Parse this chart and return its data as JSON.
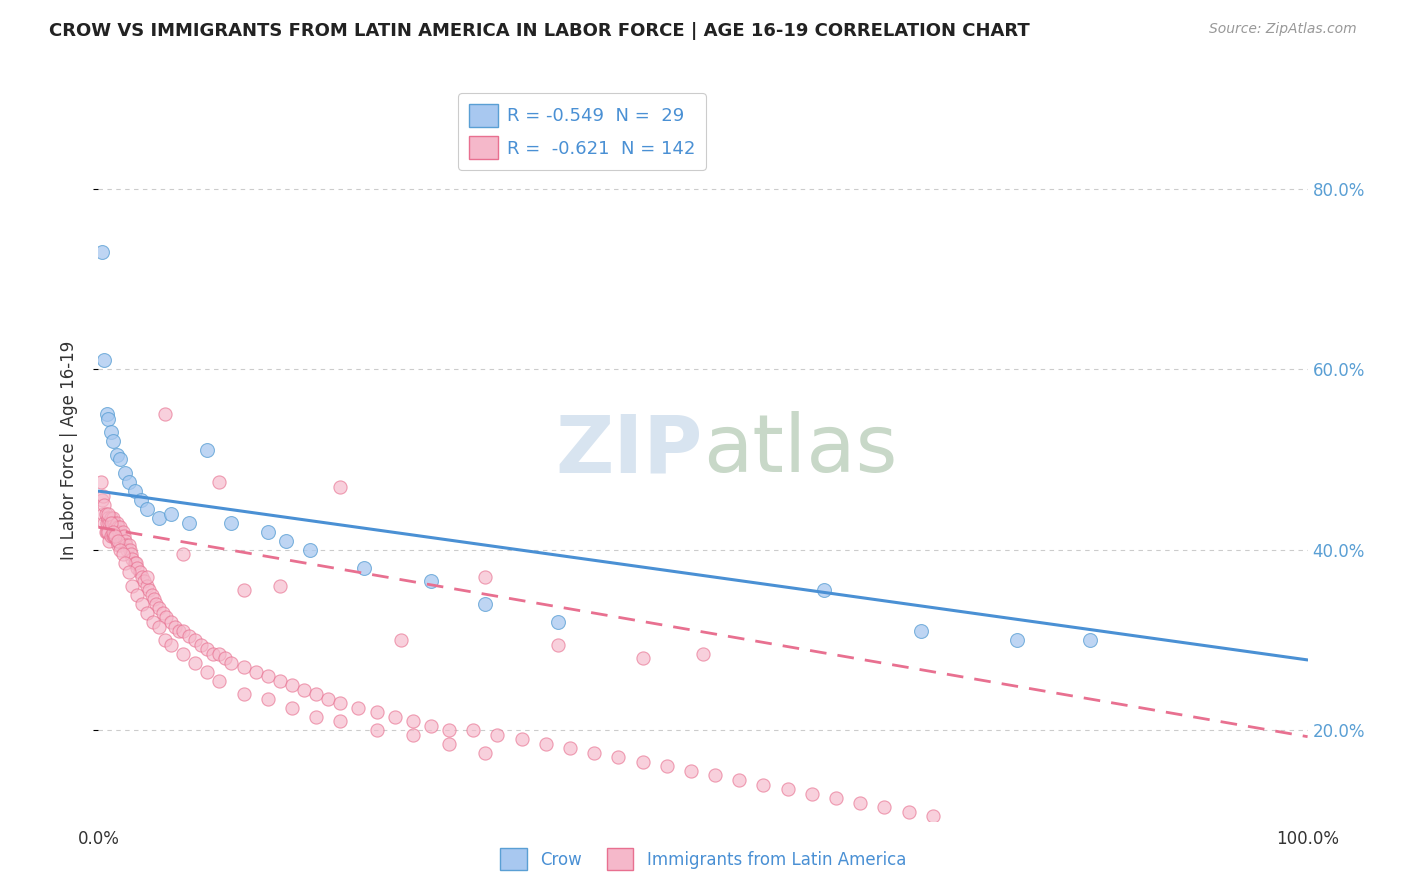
{
  "title": "CROW VS IMMIGRANTS FROM LATIN AMERICA IN LABOR FORCE | AGE 16-19 CORRELATION CHART",
  "source": "Source: ZipAtlas.com",
  "ylabel": "In Labor Force | Age 16-19",
  "y_tick_vals": [
    0.2,
    0.4,
    0.6,
    0.8
  ],
  "legend_crow_R": "-0.549",
  "legend_crow_N": "29",
  "legend_imm_R": "-0.621",
  "legend_imm_N": "142",
  "crow_color": "#a8c8f0",
  "imm_color": "#f5b8ca",
  "crow_edge_color": "#5a9fd4",
  "imm_edge_color": "#e87090",
  "crow_line_color": "#4a90d4",
  "imm_line_color": "#e87090",
  "tick_color": "#5a9fd4",
  "watermark_color": "#d8e4f0",
  "background_color": "#ffffff",
  "grid_color": "#cccccc",
  "crow_x": [
    0.003,
    0.005,
    0.007,
    0.008,
    0.01,
    0.012,
    0.015,
    0.018,
    0.022,
    0.025,
    0.03,
    0.035,
    0.04,
    0.05,
    0.06,
    0.075,
    0.09,
    0.11,
    0.14,
    0.155,
    0.175,
    0.22,
    0.275,
    0.32,
    0.38,
    0.6,
    0.68,
    0.76,
    0.82
  ],
  "crow_y": [
    0.73,
    0.61,
    0.55,
    0.545,
    0.53,
    0.52,
    0.505,
    0.5,
    0.485,
    0.475,
    0.465,
    0.455,
    0.445,
    0.435,
    0.44,
    0.43,
    0.51,
    0.43,
    0.42,
    0.41,
    0.4,
    0.38,
    0.365,
    0.34,
    0.32,
    0.355,
    0.31,
    0.3,
    0.3
  ],
  "imm_x": [
    0.002,
    0.003,
    0.004,
    0.004,
    0.005,
    0.005,
    0.006,
    0.006,
    0.007,
    0.007,
    0.008,
    0.008,
    0.009,
    0.009,
    0.01,
    0.01,
    0.011,
    0.012,
    0.012,
    0.013,
    0.013,
    0.014,
    0.015,
    0.015,
    0.016,
    0.016,
    0.017,
    0.018,
    0.018,
    0.019,
    0.02,
    0.021,
    0.022,
    0.023,
    0.024,
    0.025,
    0.026,
    0.027,
    0.028,
    0.03,
    0.031,
    0.032,
    0.034,
    0.036,
    0.038,
    0.04,
    0.042,
    0.044,
    0.046,
    0.048,
    0.05,
    0.053,
    0.056,
    0.06,
    0.063,
    0.067,
    0.07,
    0.075,
    0.08,
    0.085,
    0.09,
    0.095,
    0.1,
    0.105,
    0.11,
    0.12,
    0.13,
    0.14,
    0.15,
    0.16,
    0.17,
    0.18,
    0.19,
    0.2,
    0.215,
    0.23,
    0.245,
    0.26,
    0.275,
    0.29,
    0.31,
    0.33,
    0.35,
    0.37,
    0.39,
    0.41,
    0.43,
    0.45,
    0.47,
    0.49,
    0.51,
    0.53,
    0.55,
    0.57,
    0.59,
    0.61,
    0.63,
    0.65,
    0.67,
    0.69,
    0.008,
    0.01,
    0.012,
    0.014,
    0.016,
    0.018,
    0.02,
    0.022,
    0.025,
    0.028,
    0.032,
    0.036,
    0.04,
    0.045,
    0.05,
    0.055,
    0.06,
    0.07,
    0.08,
    0.09,
    0.1,
    0.12,
    0.14,
    0.16,
    0.18,
    0.2,
    0.23,
    0.26,
    0.29,
    0.32,
    0.055,
    0.1,
    0.2,
    0.32,
    0.5,
    0.15,
    0.38,
    0.45,
    0.25,
    0.12,
    0.07,
    0.04
  ],
  "imm_y": [
    0.475,
    0.455,
    0.44,
    0.46,
    0.45,
    0.43,
    0.44,
    0.42,
    0.43,
    0.42,
    0.435,
    0.42,
    0.43,
    0.41,
    0.435,
    0.415,
    0.43,
    0.435,
    0.415,
    0.43,
    0.415,
    0.425,
    0.43,
    0.41,
    0.425,
    0.405,
    0.42,
    0.425,
    0.405,
    0.415,
    0.42,
    0.415,
    0.41,
    0.405,
    0.4,
    0.405,
    0.4,
    0.395,
    0.39,
    0.385,
    0.385,
    0.38,
    0.375,
    0.37,
    0.365,
    0.36,
    0.355,
    0.35,
    0.345,
    0.34,
    0.335,
    0.33,
    0.325,
    0.32,
    0.315,
    0.31,
    0.31,
    0.305,
    0.3,
    0.295,
    0.29,
    0.285,
    0.285,
    0.28,
    0.275,
    0.27,
    0.265,
    0.26,
    0.255,
    0.25,
    0.245,
    0.24,
    0.235,
    0.23,
    0.225,
    0.22,
    0.215,
    0.21,
    0.205,
    0.2,
    0.2,
    0.195,
    0.19,
    0.185,
    0.18,
    0.175,
    0.17,
    0.165,
    0.16,
    0.155,
    0.15,
    0.145,
    0.14,
    0.135,
    0.13,
    0.125,
    0.12,
    0.115,
    0.11,
    0.105,
    0.44,
    0.43,
    0.42,
    0.415,
    0.41,
    0.4,
    0.395,
    0.385,
    0.375,
    0.36,
    0.35,
    0.34,
    0.33,
    0.32,
    0.315,
    0.3,
    0.295,
    0.285,
    0.275,
    0.265,
    0.255,
    0.24,
    0.235,
    0.225,
    0.215,
    0.21,
    0.2,
    0.195,
    0.185,
    0.175,
    0.55,
    0.475,
    0.47,
    0.37,
    0.285,
    0.36,
    0.295,
    0.28,
    0.3,
    0.355,
    0.395,
    0.37
  ]
}
